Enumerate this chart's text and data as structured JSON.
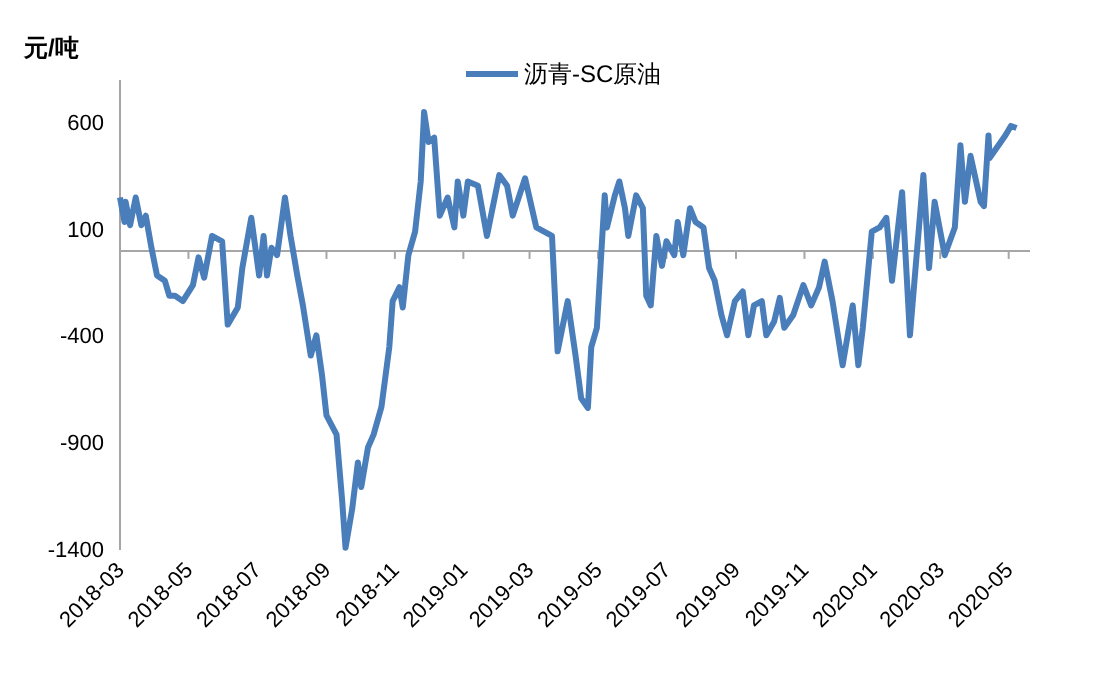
{
  "chart_data": {
    "type": "line",
    "ylabel": "元/吨",
    "legend": "top",
    "grid": false,
    "xlim": [
      "2018-03-01",
      "2020-05-20"
    ],
    "xticks": [
      "2018-03",
      "2018-05",
      "2018-07",
      "2018-09",
      "2018-11",
      "2019-01",
      "2019-03",
      "2019-05",
      "2019-07",
      "2019-09",
      "2019-11",
      "2020-01",
      "2020-03",
      "2020-05"
    ],
    "ylim": [
      -1400,
      800
    ],
    "yticks": [
      -1400,
      -900,
      -400,
      100,
      600
    ],
    "series": [
      {
        "name": "沥青-SC原油",
        "color": "#4a7ebb",
        "x": [
          "2018-03-01",
          "2018-03-05",
          "2018-03-06",
          "2018-03-10",
          "2018-03-15",
          "2018-03-20",
          "2018-03-24",
          "2018-03-29",
          "2018-04-03",
          "2018-04-10",
          "2018-04-14",
          "2018-04-19",
          "2018-04-26",
          "2018-05-05",
          "2018-05-10",
          "2018-05-15",
          "2018-05-22",
          "2018-05-31",
          "2018-06-05",
          "2018-06-14",
          "2018-06-18",
          "2018-06-26",
          "2018-07-03",
          "2018-07-07",
          "2018-07-10",
          "2018-07-14",
          "2018-07-19",
          "2018-07-26",
          "2018-07-31",
          "2018-08-06",
          "2018-08-11",
          "2018-08-18",
          "2018-08-23",
          "2018-08-28",
          "2018-09-01",
          "2018-09-10",
          "2018-09-15",
          "2018-09-18",
          "2018-09-24",
          "2018-09-29",
          "2018-10-02",
          "2018-10-08",
          "2018-10-13",
          "2018-10-20",
          "2018-10-27",
          "2018-10-30",
          "2018-11-05",
          "2018-11-08",
          "2018-11-13",
          "2018-11-19",
          "2018-11-24",
          "2018-11-27",
          "2018-12-01",
          "2018-12-06",
          "2018-12-11",
          "2018-12-18",
          "2018-12-24",
          "2018-12-27",
          "2019-01-01",
          "2019-01-05",
          "2019-01-14",
          "2019-01-22",
          "2019-02-02",
          "2019-02-09",
          "2019-02-14",
          "2019-02-25",
          "2019-03-07",
          "2019-03-21",
          "2019-03-26",
          "2019-04-04",
          "2019-04-11",
          "2019-04-16",
          "2019-04-22",
          "2019-04-25",
          "2019-04-30",
          "2019-05-07",
          "2019-05-09",
          "2019-05-16",
          "2019-05-20",
          "2019-05-25",
          "2019-05-28",
          "2019-06-04",
          "2019-06-10",
          "2019-06-13",
          "2019-06-17",
          "2019-06-22",
          "2019-06-27",
          "2019-07-01",
          "2019-07-08",
          "2019-07-11",
          "2019-07-16",
          "2019-07-22",
          "2019-07-27",
          "2019-08-03",
          "2019-08-08",
          "2019-08-13",
          "2019-08-19",
          "2019-08-24",
          "2019-08-31",
          "2019-09-07",
          "2019-09-12",
          "2019-09-17",
          "2019-09-24",
          "2019-09-28",
          "2019-10-05",
          "2019-10-10",
          "2019-10-14",
          "2019-10-22",
          "2019-10-31",
          "2019-11-07",
          "2019-11-14",
          "2019-11-19",
          "2019-11-26",
          "2019-12-05",
          "2019-12-14",
          "2019-12-19",
          "2019-12-23",
          "2019-12-31",
          "2020-01-07",
          "2020-01-13",
          "2020-01-18",
          "2020-01-27",
          "2020-02-03",
          "2020-02-08",
          "2020-02-15",
          "2020-02-20",
          "2020-02-25",
          "2020-03-05",
          "2020-03-14",
          "2020-03-19",
          "2020-03-23",
          "2020-03-28",
          "2020-04-06",
          "2020-04-09",
          "2020-04-13",
          "2020-04-14",
          "2020-04-28",
          "2020-05-03",
          "2020-05-08"
        ],
        "values": [
          250,
          135,
          230,
          120,
          250,
          120,
          165,
          15,
          -115,
          -140,
          -210,
          -210,
          -235,
          -160,
          -30,
          -125,
          70,
          45,
          -345,
          -265,
          -80,
          155,
          -115,
          70,
          -115,
          15,
          -20,
          250,
          70,
          -115,
          -255,
          -490,
          -395,
          -580,
          -770,
          -860,
          -1170,
          -1390,
          -1205,
          -990,
          -1105,
          -920,
          -860,
          -730,
          -450,
          -235,
          -170,
          -265,
          -20,
          90,
          325,
          650,
          510,
          530,
          165,
          250,
          110,
          325,
          165,
          325,
          305,
          70,
          355,
          305,
          165,
          340,
          110,
          70,
          -470,
          -235,
          -490,
          -690,
          -735,
          -450,
          -360,
          260,
          110,
          260,
          325,
          200,
          70,
          260,
          200,
          -210,
          -255,
          70,
          -70,
          45,
          -20,
          135,
          -20,
          200,
          135,
          110,
          -80,
          -140,
          -300,
          -395,
          -235,
          -190,
          -395,
          -255,
          -235,
          -395,
          -330,
          -220,
          -360,
          -300,
          -160,
          -255,
          -170,
          -50,
          -235,
          -535,
          -255,
          -535,
          -360,
          90,
          110,
          155,
          -140,
          275,
          -395,
          -80,
          355,
          -80,
          230,
          -20,
          110,
          495,
          230,
          445,
          230,
          210,
          540,
          435,
          540,
          585,
          575
        ]
      }
    ]
  }
}
